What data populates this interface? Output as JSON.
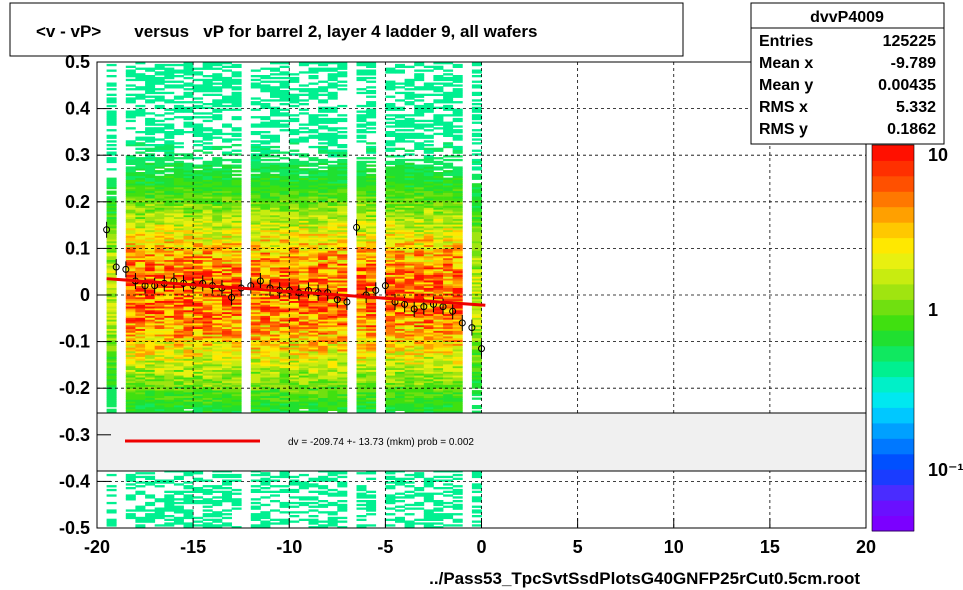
{
  "chart_data": {
    "type": "heatmap",
    "title": "<v - vP>       versus   vP for barrel 2, layer 4 ladder 9, all wafers",
    "xlabel": "../Pass53_TpcSvtSsdPlotsG40GNFP25rCut0.5cm.root",
    "ylabel": "",
    "xlim": [
      -20,
      20
    ],
    "ylim": [
      -0.5,
      0.5
    ],
    "x_ticks": [
      "-20",
      "-15",
      "-10",
      "-5",
      "0",
      "5",
      "10",
      "15",
      "20"
    ],
    "y_ticks": [
      "-0.5",
      "-0.4",
      "-0.3",
      "-0.2",
      "-0.1",
      "0",
      "0.1",
      "0.2",
      "0.3",
      "0.4",
      "0.5"
    ],
    "grid": true,
    "z_scale": "log",
    "z_ticks": [
      "10",
      "1",
      "10⁻¹"
    ],
    "stats": {
      "name": "dvvP4009",
      "rows": [
        {
          "label": "Entries",
          "value": "125225"
        },
        {
          "label": "Mean x",
          "value": "-9.789"
        },
        {
          "label": "Mean y",
          "value": "0.00435"
        },
        {
          "label": "RMS x",
          "value": "5.332"
        },
        {
          "label": "RMS y",
          "value": "0.1862"
        }
      ]
    },
    "fit": {
      "label": "dv = -209.74 +- 13.73 (mkm) prob = 0.002",
      "line": {
        "x": [
          -19.5,
          0.2
        ],
        "y": [
          0.035,
          -0.022
        ]
      },
      "color": "#ee0000"
    },
    "profile_points": {
      "x": [
        -19.5,
        -19.0,
        -18.5,
        -18.0,
        -17.5,
        -17.0,
        -16.5,
        -16.0,
        -15.5,
        -15.0,
        -14.5,
        -14.0,
        -13.5,
        -13.0,
        -12.5,
        -12.0,
        -11.5,
        -11.0,
        -10.5,
        -10.0,
        -9.5,
        -9.0,
        -8.5,
        -8.0,
        -7.5,
        -7.0,
        -6.5,
        -6.0,
        -5.5,
        -5.0,
        -4.5,
        -4.0,
        -3.5,
        -3.0,
        -2.5,
        -2.0,
        -1.5,
        -1.0,
        -0.5,
        0.0
      ],
      "y": [
        0.14,
        0.06,
        0.055,
        0.03,
        0.02,
        0.02,
        0.025,
        0.03,
        0.025,
        0.02,
        0.025,
        0.02,
        0.015,
        -0.005,
        0.015,
        0.02,
        0.03,
        0.015,
        0.01,
        0.01,
        0.005,
        0.01,
        0.005,
        0.005,
        -0.01,
        -0.015,
        0.145,
        0.0,
        0.01,
        0.02,
        -0.015,
        -0.02,
        -0.03,
        -0.025,
        -0.02,
        -0.025,
        -0.035,
        -0.06,
        -0.07,
        -0.115
      ]
    },
    "gaps_x": [
      [
        -19.0,
        -18.5
      ],
      [
        -12.5,
        -12.0
      ],
      [
        -7.0,
        -6.5
      ],
      [
        -5.5,
        -5.0
      ],
      [
        -1.0,
        -0.5
      ]
    ],
    "colors": {
      "fit_line": "#ee0000",
      "marker": "#000000",
      "frame": "#000000",
      "fit_box_fill": "#f0f0f0"
    }
  }
}
